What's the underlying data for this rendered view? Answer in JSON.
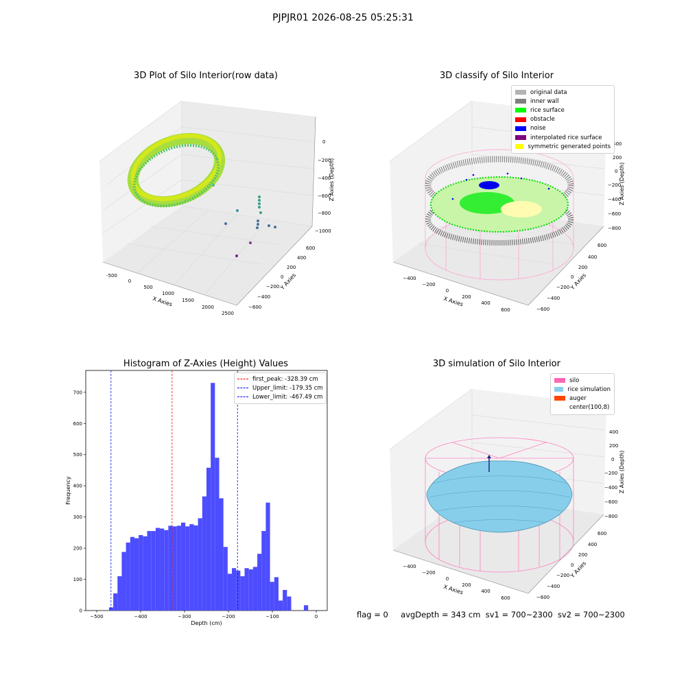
{
  "suptitle": "PJPJR01 2026-08-25 05:25:31",
  "panels": {
    "raw": {
      "title": "3D Plot of Silo Interior(row data)",
      "xlabel": "X Axies",
      "ylabel": "Y Axies",
      "zlabel": "Z Axies (Depth)",
      "xticks": [
        "-500",
        "0",
        "500",
        "1000",
        "1500",
        "2000",
        "2500"
      ],
      "yticks": [
        "600",
        "400",
        "200",
        "0",
        "−200",
        "−400",
        "−600"
      ],
      "zticks": [
        "0",
        "−200",
        "−400",
        "−600",
        "−800",
        "−1000"
      ]
    },
    "classify": {
      "title": "3D classify of Silo Interior",
      "xlabel": "X Axies",
      "ylabel": "Y Axies",
      "zlabel": "Z Axies (Depth)",
      "xticks": [
        "−400",
        "−200",
        "0",
        "200",
        "400",
        "600"
      ],
      "yticks": [
        "600",
        "400",
        "200",
        "0",
        "−200",
        "−400",
        "−600"
      ],
      "zticks": [
        "400",
        "200",
        "0",
        "−200",
        "−400",
        "−600",
        "−800"
      ],
      "legend": [
        {
          "label": "original data",
          "color": "#b3b3b3"
        },
        {
          "label": "inner wall",
          "color": "#808080"
        },
        {
          "label": "rice surface",
          "color": "#00ff00"
        },
        {
          "label": "obstacle",
          "color": "#ff0000"
        },
        {
          "label": "noise",
          "color": "#0000ff"
        },
        {
          "label": "interpolated rice surface",
          "color": "#800080"
        },
        {
          "label": "symmetric generated points",
          "color": "#ffff00"
        }
      ]
    },
    "simulation": {
      "title": "3D simulation of Silo Interior",
      "xlabel": "X Axies",
      "ylabel": "Y Axies",
      "zlabel": "Z Axies (Depth)",
      "xticks": [
        "−400",
        "−200",
        "0",
        "200",
        "400",
        "600"
      ],
      "yticks": [
        "600",
        "400",
        "200",
        "0",
        "−200",
        "−400",
        "−600"
      ],
      "zticks": [
        "400",
        "200",
        "0",
        "−200",
        "−400",
        "−600",
        "−800"
      ],
      "legend": [
        {
          "label": "silo",
          "color": "#ff69b4"
        },
        {
          "label": "rice simulation",
          "color": "#87ceeb"
        },
        {
          "label": "auger",
          "color": "#ff4500"
        },
        {
          "label": "center(100,8)",
          "color": null
        }
      ]
    }
  },
  "chart_data": {
    "type": "bar",
    "title": "Histogram of Z-Axies (Height) Values",
    "xlabel": "Depth (cm)",
    "ylabel": "Frequency",
    "xlim": [
      -525,
      25
    ],
    "ylim": [
      0,
      770
    ],
    "xticks": [
      -500,
      -400,
      -300,
      -200,
      -100,
      0
    ],
    "yticks": [
      0,
      100,
      200,
      300,
      400,
      500,
      600,
      700
    ],
    "bar_color": "#4d4dff",
    "bin_width": 9.65,
    "bin_start": -472,
    "values": [
      10,
      55,
      110,
      188,
      218,
      236,
      232,
      242,
      238,
      255,
      255,
      265,
      263,
      258,
      272,
      270,
      272,
      282,
      270,
      277,
      273,
      296,
      366,
      458,
      730,
      490,
      360,
      204,
      118,
      136,
      128,
      110,
      136,
      132,
      140,
      182,
      255,
      346,
      92,
      107,
      32,
      66,
      45,
      0,
      0,
      0,
      17
    ],
    "vlines": [
      {
        "x": -328.39,
        "color": "#ff0000",
        "label": "first_peak: -328.39 cm"
      },
      {
        "x": -179.35,
        "color": "#0000ff",
        "label": "Upper_limit: -179.35 cm"
      },
      {
        "x": -467.49,
        "color": "#0000ff",
        "label": "Lower_limit: -467.49 cm"
      }
    ]
  },
  "footer": {
    "flag": "flag = 0",
    "avg_depth": "avgDepth = 343 cm",
    "sv1": "sv1 = 700~2300",
    "sv2": "sv2 = 700~2300"
  }
}
